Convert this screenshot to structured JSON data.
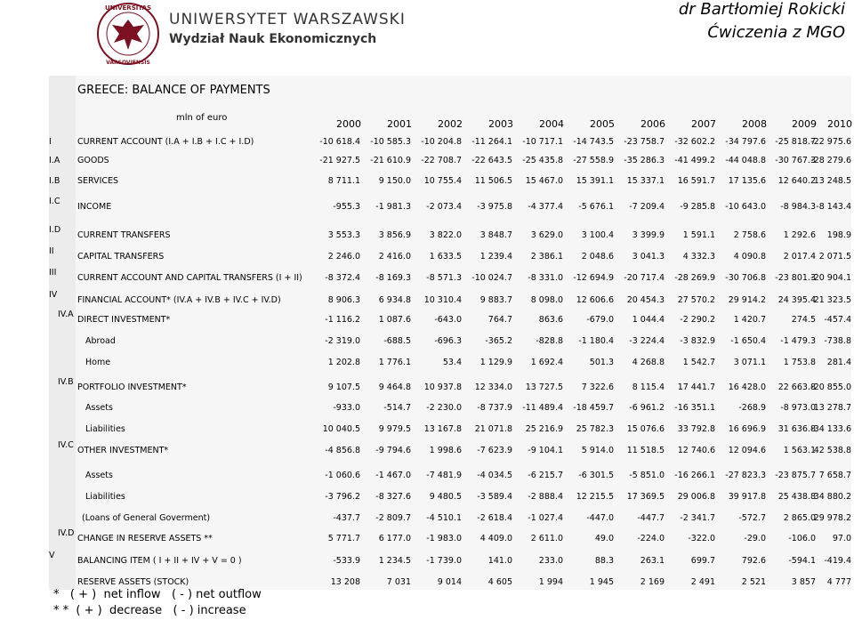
{
  "header": {
    "logo_text": [
      "UNIVERSITAS",
      "VARSOVIENSIS"
    ],
    "university": "UNIWERSYTET WARSZAWSKI",
    "faculty": "Wydział Nauk Ekonomicznych",
    "author": "dr Bartłomiej Rokicki",
    "course": "Ćwiczenia z MGO"
  },
  "table": {
    "title": "GREECE: BALANCE OF PAYMENTS",
    "unit": "mln of euro",
    "years": [
      "2000",
      "2001",
      "2002",
      "2003",
      "2004",
      "2005",
      "2006",
      "2007",
      "2008",
      "2009",
      "2010"
    ],
    "rows": [
      {
        "code": "I",
        "label": "CURRENT ACCOUNT (I.A + I.B + I.C + I.D)",
        "values": [
          "-10 618.4",
          "-10 585.3",
          "-10 204.8",
          "-11 264.1",
          "-10 717.1",
          "-14 743.5",
          "-23 758.7",
          "-32 602.2",
          "-34 797.6",
          "-25 818.7",
          "-22 975.6"
        ]
      },
      {
        "code": "I.A",
        "label": "GOODS",
        "values": [
          "-21 927.5",
          "-21 610.9",
          "-22 708.7",
          "-22 643.5",
          "-25 435.8",
          "-27 558.9",
          "-35 286.3",
          "-41 499.2",
          "-44 048.8",
          "-30 767.3",
          "-28 279.6"
        ]
      },
      {
        "code": "I.B",
        "label": "SERVICES",
        "values": [
          "8 711.1",
          "9 150.0",
          "10 755.4",
          "11 506.5",
          "15 467.0",
          "15 391.1",
          "15 337.1",
          "16 591.7",
          "17 135.6",
          "12 640.2",
          "13 248.5"
        ]
      },
      {
        "code": "I.C",
        "label": "INCOME",
        "values": [
          "-955.3",
          "-1 981.3",
          "-2 073.4",
          "-3 975.8",
          "-4 377.4",
          "-5 676.1",
          "-7 209.4",
          "-9 285.8",
          "-10 643.0",
          "-8 984.3",
          "-8 143.4"
        ]
      },
      {
        "code": "I.D",
        "label": "CURRENT TRANSFERS",
        "values": [
          "3 553.3",
          "3 856.9",
          "3 822.0",
          "3 848.7",
          "3 629.0",
          "3 100.4",
          "3 399.9",
          "1 591.1",
          "2 758.6",
          "1 292.6",
          "198.9"
        ]
      },
      {
        "code": "II",
        "label": "CAPITAL TRANSFERS",
        "values": [
          "2 246.0",
          "2 416.0",
          "1 633.5",
          "1 239.4",
          "2 386.1",
          "2 048.6",
          "3 041.3",
          "4 332.3",
          "4 090.8",
          "2 017.4",
          "2 071.5"
        ]
      },
      {
        "code": "III",
        "label": "CURRENT ACCOUNT AND CAPITAL TRANSFERS (I + II)",
        "values": [
          "-8 372.4",
          "-8 169.3",
          "-8 571.3",
          "-10 024.7",
          "-8 331.0",
          "-12 694.9",
          "-20 717.4",
          "-28 269.9",
          "-30 706.8",
          "-23 801.3",
          "-20 904.1"
        ]
      },
      {
        "code": "IV",
        "label": "FINANCIAL ACCOUNT* (IV.A + IV.B + IV.C + IV.D)",
        "values": [
          "8 906.3",
          "6 934.8",
          "10 310.4",
          "9 883.7",
          "8 098.0",
          "12 606.6",
          "20 454.3",
          "27 570.2",
          "29 914.2",
          "24 395.4",
          "21 323.5"
        ]
      },
      {
        "code": "IV.A",
        "label": "DIRECT INVESTMENT*",
        "values": [
          "-1 116.2",
          "1 087.6",
          "-643.0",
          "764.7",
          "863.6",
          "-679.0",
          "1 044.4",
          "-2 290.2",
          "1 420.7",
          "274.5",
          "-457.4"
        ]
      },
      {
        "label": "Abroad",
        "values": [
          "-2 319.0",
          "-688.5",
          "-696.3",
          "-365.2",
          "-828.8",
          "-1 180.4",
          "-3 224.4",
          "-3 832.9",
          "-1 650.4",
          "-1 479.3",
          "-738.8"
        ]
      },
      {
        "label": "Home",
        "values": [
          "1 202.8",
          "1 776.1",
          "53.4",
          "1 129.9",
          "1 692.4",
          "501.3",
          "4 268.8",
          "1 542.7",
          "3 071.1",
          "1 753.8",
          "281.4"
        ]
      },
      {
        "code": "IV.B",
        "label": "PORTFOLIO INVESTMENT*",
        "values": [
          "9 107.5",
          "9 464.8",
          "10 937.8",
          "12 334.0",
          "13 727.5",
          "7 322.6",
          "8 115.4",
          "17 441.7",
          "16 428.0",
          "22 663.8",
          "-20 855.0"
        ]
      },
      {
        "label": "Assets",
        "values": [
          "-933.0",
          "-514.7",
          "-2 230.0",
          "-8 737.9",
          "-11 489.4",
          "-18 459.7",
          "-6 961.2",
          "-16 351.1",
          "-268.9",
          "-8 973.0",
          "13 278.7"
        ]
      },
      {
        "label": "Liabilities",
        "values": [
          "10 040.5",
          "9 979.5",
          "13 167.8",
          "21 071.8",
          "25 216.9",
          "25 782.3",
          "15 076.6",
          "33 792.8",
          "16 696.9",
          "31 636.8",
          "-34 133.6"
        ]
      },
      {
        "code": "IV.C",
        "label": "OTHER INVESTMENT*",
        "values": [
          "-4 856.8",
          "-9 794.6",
          "1 998.6",
          "-7 623.9",
          "-9 104.1",
          "5 914.0",
          "11 518.5",
          "12 740.6",
          "12 094.6",
          "1 563.1",
          "42 538.8"
        ]
      },
      {
        "label": "Assets",
        "values": [
          "-1 060.6",
          "-1 467.0",
          "-7 481.9",
          "-4 034.5",
          "-6 215.7",
          "-6 301.5",
          "-5 851.0",
          "-16 266.1",
          "-27 823.3",
          "-23 875.7",
          "7 658.7"
        ]
      },
      {
        "label": "Liabilities",
        "values": [
          "-3 796.2",
          "-8 327.6",
          "9 480.5",
          "-3 589.4",
          "-2 888.4",
          "12 215.5",
          "17 369.5",
          "29 006.8",
          "39 917.8",
          "25 438.8",
          "34 880.2"
        ]
      },
      {
        "label": "(Loans of General Goverment)",
        "values": [
          "-437.7",
          "-2 809.7",
          "-4 510.1",
          "-2 618.4",
          "-1 027.4",
          "-447.0",
          "-447.7",
          "-2 341.7",
          "-572.7",
          "2 865.0",
          "29 978.2"
        ]
      },
      {
        "code": "IV.D",
        "label": "CHANGE IN RESERVE ASSETS **",
        "values": [
          "5 771.7",
          "6 177.0",
          "-1 983.0",
          "4 409.0",
          "2 611.0",
          "49.0",
          "-224.0",
          "-322.0",
          "-29.0",
          "-106.0",
          "97.0"
        ]
      },
      {
        "code": "V",
        "label": "BALANCING ITEM ( I + II + IV + V = 0 )",
        "values": [
          "-533.9",
          "1 234.5",
          "-1 739.0",
          "141.0",
          "233.0",
          "88.3",
          "263.1",
          "699.7",
          "792.6",
          "-594.1",
          "-419.4"
        ]
      },
      {
        "label": "RESERVE ASSETS (STOCK)",
        "values": [
          "13 208",
          "7 031",
          "9 014",
          "4 605",
          "1 994",
          "1 945",
          "2 169",
          "2 491",
          "2 521",
          "3 857",
          "4 777"
        ]
      }
    ]
  },
  "footnotes": [
    "*   ( + )  net inflow   ( - ) net outflow",
    "* *  ( + )  decrease   ( - ) increase"
  ]
}
